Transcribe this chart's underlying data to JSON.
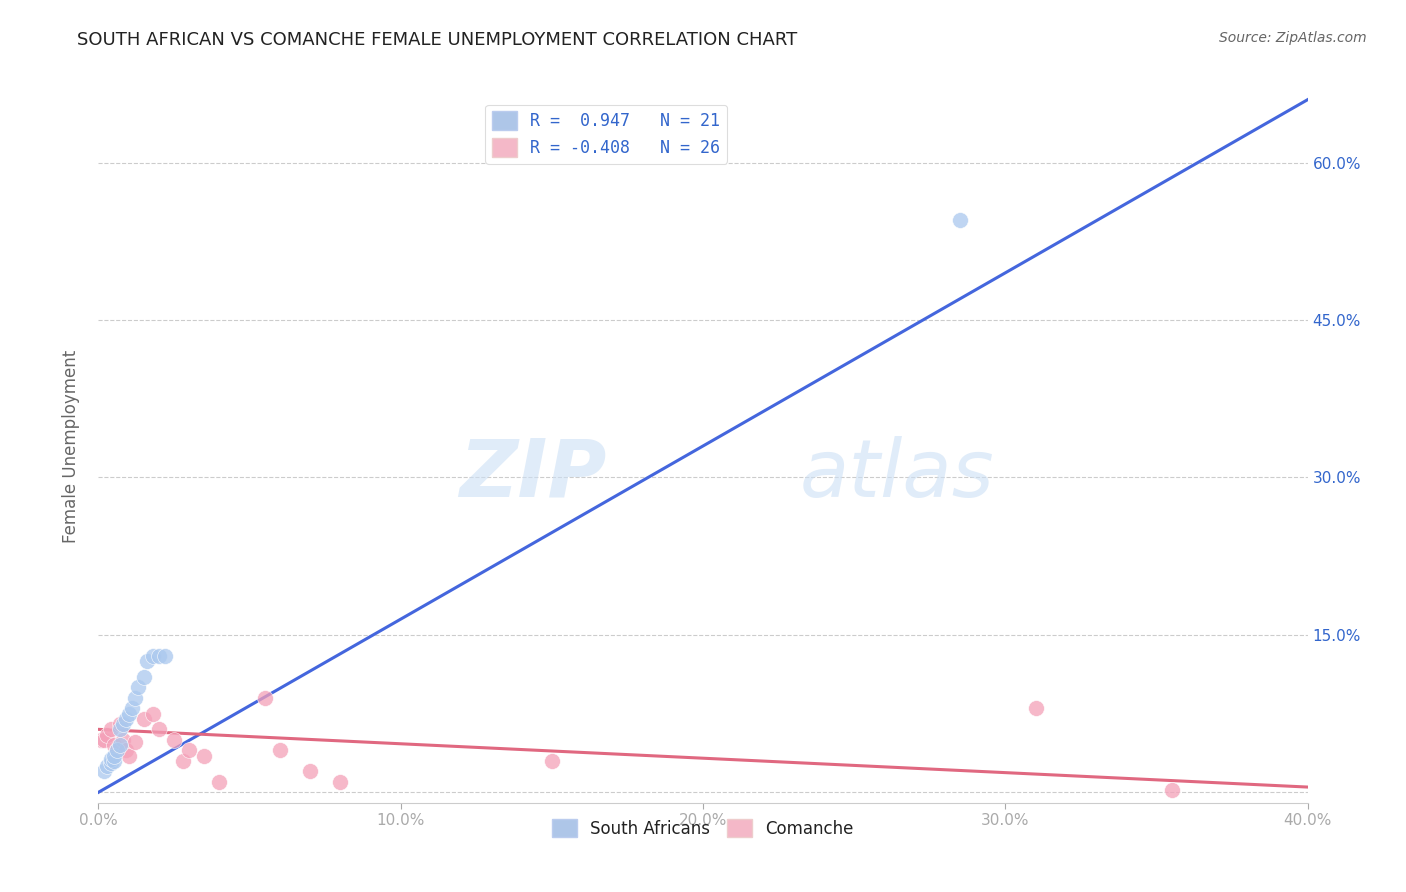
{
  "title": "SOUTH AFRICAN VS COMANCHE FEMALE UNEMPLOYMENT CORRELATION CHART",
  "source": "Source: ZipAtlas.com",
  "ylabel": "Female Unemployment",
  "xlim": [
    0.0,
    0.4
  ],
  "ylim": [
    -0.01,
    0.67
  ],
  "xticks": [
    0.0,
    0.1,
    0.2,
    0.3,
    0.4
  ],
  "yticks_right": [
    0.0,
    0.15,
    0.3,
    0.45,
    0.6
  ],
  "ytick_labels_right": [
    "",
    "15.0%",
    "30.0%",
    "45.0%",
    "60.0%"
  ],
  "xtick_labels": [
    "0.0%",
    "10.0%",
    "20.0%",
    "30.0%",
    "40.0%"
  ],
  "legend_entries": [
    {
      "label": "R =  0.947   N = 21",
      "color": "#aec6e8"
    },
    {
      "label": "R = -0.408   N = 26",
      "color": "#f4b8c8"
    }
  ],
  "legend_text_color": "#3366cc",
  "sa_color": "#aac8ee",
  "comanche_color": "#f4a0b8",
  "sa_line_color": "#4466dd",
  "comanche_line_color": "#e06880",
  "watermark_zip": "ZIP",
  "watermark_atlas": "atlas",
  "sa_points_x": [
    0.002,
    0.003,
    0.004,
    0.004,
    0.005,
    0.005,
    0.006,
    0.007,
    0.007,
    0.008,
    0.009,
    0.01,
    0.011,
    0.012,
    0.013,
    0.015,
    0.016,
    0.018,
    0.02,
    0.022,
    0.285
  ],
  "sa_points_y": [
    0.02,
    0.025,
    0.028,
    0.032,
    0.03,
    0.035,
    0.04,
    0.045,
    0.06,
    0.065,
    0.07,
    0.075,
    0.08,
    0.09,
    0.1,
    0.11,
    0.125,
    0.13,
    0.13,
    0.13,
    0.545
  ],
  "comanche_points_x": [
    0.001,
    0.002,
    0.003,
    0.004,
    0.005,
    0.006,
    0.007,
    0.008,
    0.009,
    0.01,
    0.012,
    0.015,
    0.018,
    0.02,
    0.025,
    0.028,
    0.03,
    0.035,
    0.04,
    0.055,
    0.06,
    0.07,
    0.08,
    0.15,
    0.31,
    0.355
  ],
  "comanche_points_y": [
    0.05,
    0.05,
    0.055,
    0.06,
    0.045,
    0.04,
    0.065,
    0.05,
    0.04,
    0.035,
    0.048,
    0.07,
    0.075,
    0.06,
    0.05,
    0.03,
    0.04,
    0.035,
    0.01,
    0.09,
    0.04,
    0.02,
    0.01,
    0.03,
    0.08,
    0.002
  ],
  "background_color": "#ffffff",
  "grid_color": "#cccccc",
  "sa_line_x": [
    0.0,
    0.4
  ],
  "sa_line_y": [
    0.0,
    0.66
  ],
  "comanche_line_x": [
    0.0,
    0.4
  ],
  "comanche_line_y": [
    0.06,
    0.005
  ]
}
